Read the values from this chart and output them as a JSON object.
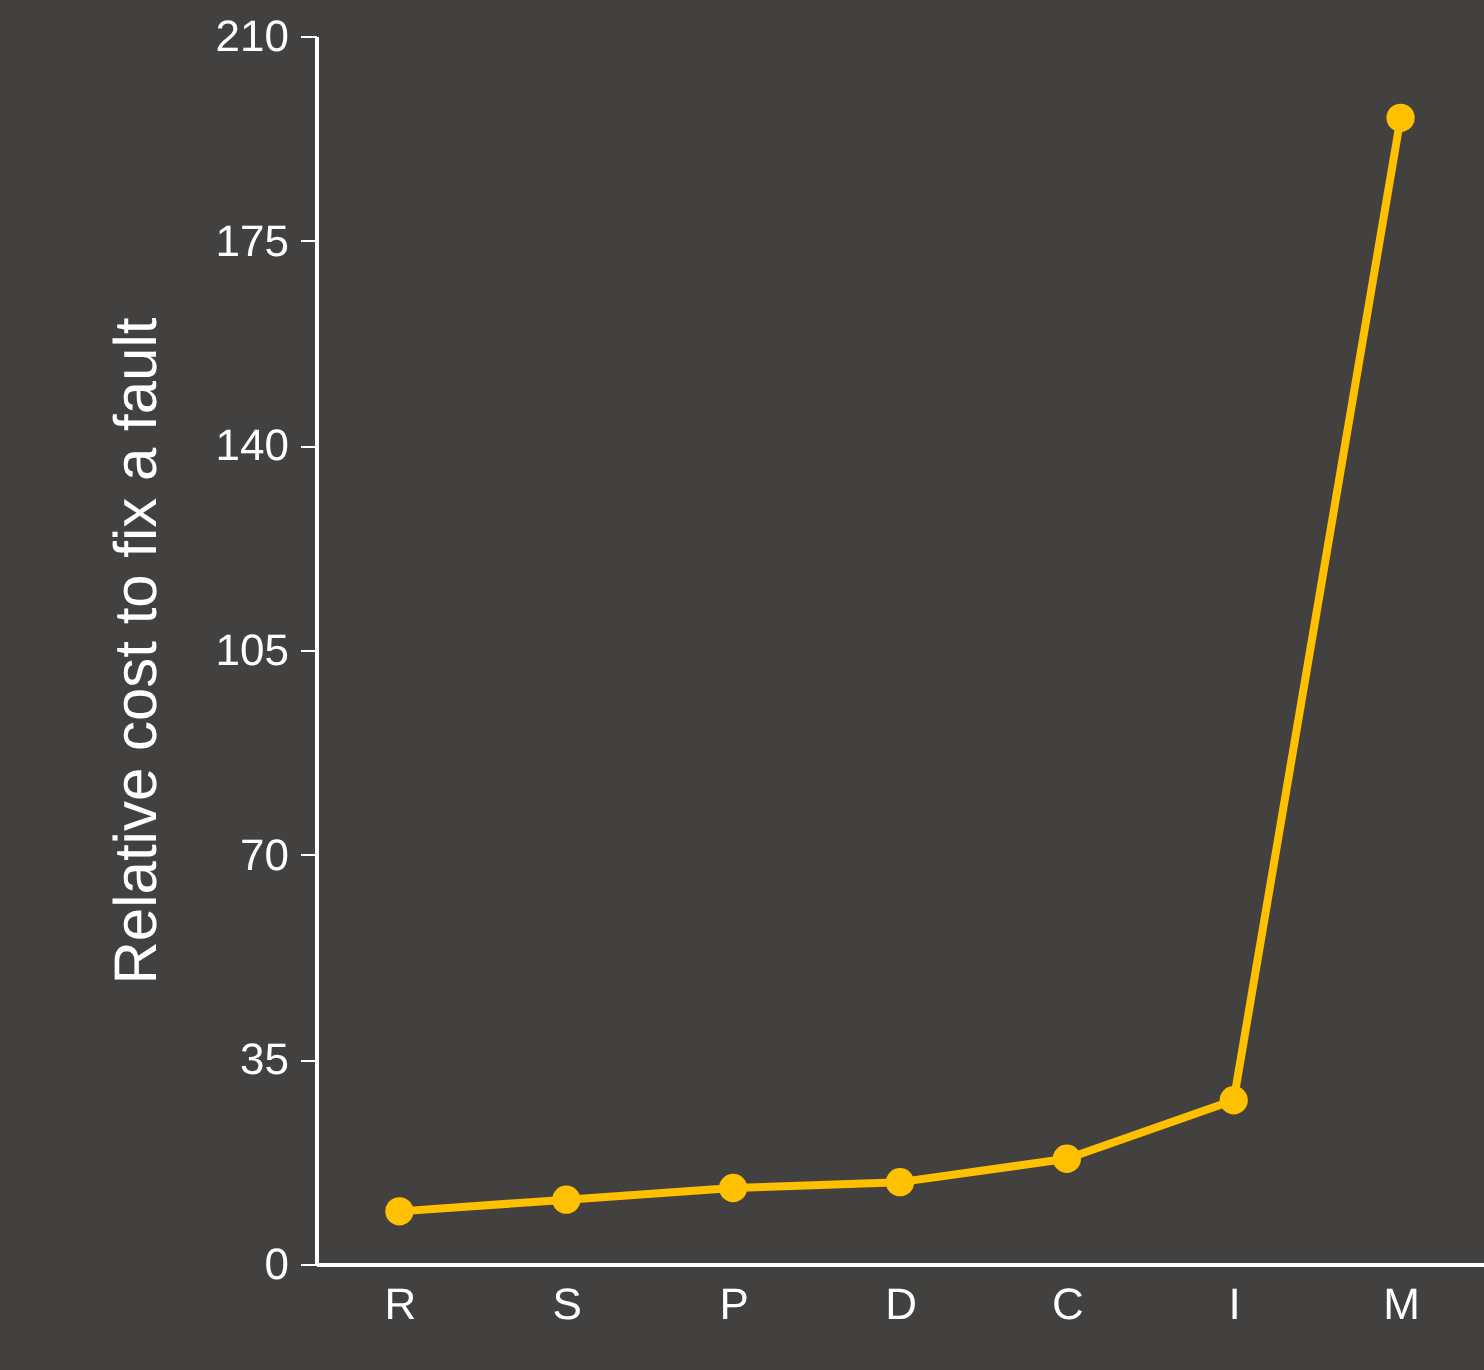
{
  "chart_data": {
    "type": "line",
    "ylabel": "Relative cost to fix a fault",
    "categories": [
      "R",
      "S",
      "P",
      "D",
      "C",
      "I",
      "M"
    ],
    "series": [
      {
        "color": "#ffc000",
        "values": [
          9,
          11,
          13,
          14,
          18,
          28,
          196
        ]
      }
    ],
    "ylim": [
      0,
      210
    ],
    "yticks": [
      0,
      35,
      70,
      105,
      140,
      175,
      210
    ],
    "grid": false,
    "marker": "circle",
    "line_style": "solid"
  }
}
